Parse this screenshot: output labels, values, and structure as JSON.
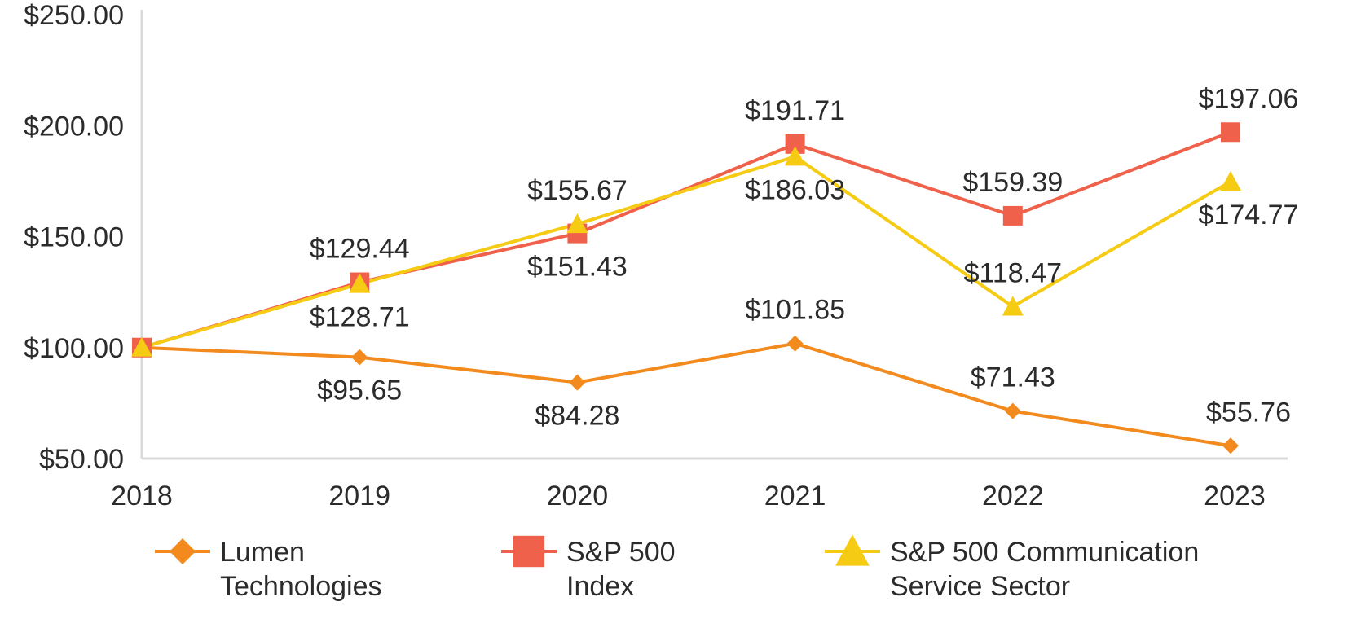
{
  "chart_data": {
    "type": "line",
    "title": "",
    "xlabel": "",
    "ylabel": "",
    "categories": [
      "2018",
      "2019",
      "2020",
      "2021",
      "2022",
      "2023"
    ],
    "ylim": [
      50,
      250
    ],
    "yticks": [
      50,
      100,
      150,
      200,
      250
    ],
    "ytick_labels": [
      "$50.00",
      "$100.00",
      "$150.00",
      "$200.00",
      "$250.00"
    ],
    "grid": false,
    "legend_position": "bottom",
    "series": [
      {
        "name": "Lumen Technologies",
        "legend_lines": [
          "Lumen",
          "Technologies"
        ],
        "color": "#F28A1E",
        "marker": "diamond",
        "values": [
          100.0,
          95.65,
          84.28,
          101.85,
          71.43,
          55.76
        ],
        "labels": [
          "",
          "$95.65",
          "$84.28",
          "$101.85",
          "$71.43",
          "$55.76"
        ],
        "label_pos": [
          "",
          "below",
          "below",
          "above",
          "above",
          "above"
        ]
      },
      {
        "name": "S&P 500 Index",
        "legend_lines": [
          "S&P 500",
          "Index"
        ],
        "color": "#F0614B",
        "marker": "square",
        "values": [
          100.0,
          129.44,
          151.43,
          191.71,
          159.39,
          197.06
        ],
        "labels": [
          "",
          "$129.44",
          "$151.43",
          "$191.71",
          "$159.39",
          "$197.06"
        ],
        "label_pos": [
          "",
          "above",
          "below",
          "above",
          "above",
          "above"
        ]
      },
      {
        "name": "S&P 500 Communication Service Sector",
        "legend_lines": [
          "S&P 500 Communication",
          "Service Sector"
        ],
        "color": "#F5CB14",
        "marker": "triangle",
        "values": [
          100.0,
          128.71,
          155.67,
          186.03,
          118.47,
          174.77
        ],
        "labels": [
          "",
          "$128.71",
          "$155.67",
          "$186.03",
          "$118.47",
          "$174.77"
        ],
        "label_pos": [
          "",
          "below",
          "above",
          "below",
          "above",
          "below"
        ]
      }
    ]
  }
}
